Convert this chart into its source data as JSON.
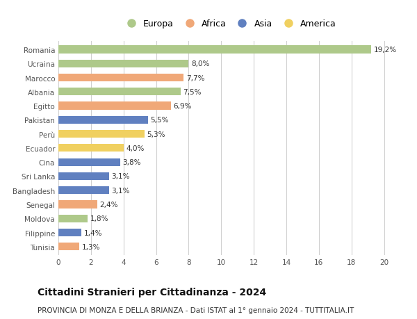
{
  "countries": [
    "Romania",
    "Ucraina",
    "Marocco",
    "Albania",
    "Egitto",
    "Pakistan",
    "Perù",
    "Ecuador",
    "Cina",
    "Sri Lanka",
    "Bangladesh",
    "Senegal",
    "Moldova",
    "Filippine",
    "Tunisia"
  ],
  "values": [
    19.2,
    8.0,
    7.7,
    7.5,
    6.9,
    5.5,
    5.3,
    4.0,
    3.8,
    3.1,
    3.1,
    2.4,
    1.8,
    1.4,
    1.3
  ],
  "labels": [
    "19,2%",
    "8,0%",
    "7,7%",
    "7,5%",
    "6,9%",
    "5,5%",
    "5,3%",
    "4,0%",
    "3,8%",
    "3,1%",
    "3,1%",
    "2,4%",
    "1,8%",
    "1,4%",
    "1,3%"
  ],
  "continents": [
    "Europa",
    "Europa",
    "Africa",
    "Europa",
    "Africa",
    "Asia",
    "America",
    "America",
    "Asia",
    "Asia",
    "Asia",
    "Africa",
    "Europa",
    "Asia",
    "Africa"
  ],
  "continent_colors": {
    "Europa": "#aec98a",
    "Africa": "#f0a878",
    "Asia": "#6080c0",
    "America": "#f0d060"
  },
  "legend_order": [
    "Europa",
    "Africa",
    "Asia",
    "America"
  ],
  "title": "Cittadini Stranieri per Cittadinanza - 2024",
  "subtitle": "PROVINCIA DI MONZA E DELLA BRIANZA - Dati ISTAT al 1° gennaio 2024 - TUTTITALIA.IT",
  "xlim": [
    0,
    21
  ],
  "xticks": [
    0,
    2,
    4,
    6,
    8,
    10,
    12,
    14,
    16,
    18,
    20
  ],
  "background_color": "#ffffff",
  "grid_color": "#d0d0d0",
  "bar_height": 0.55,
  "label_fontsize": 7.5,
  "tick_fontsize": 7.5,
  "title_fontsize": 10,
  "subtitle_fontsize": 7.5
}
